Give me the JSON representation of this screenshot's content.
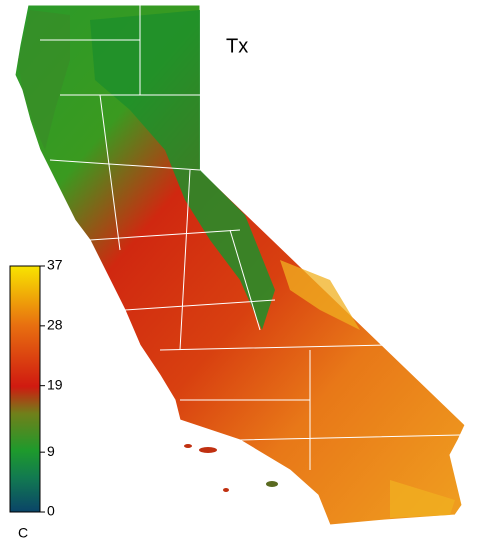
{
  "map": {
    "title": "Tx",
    "colorbar": {
      "unit": "C",
      "range": [
        0,
        37
      ],
      "ticks": [
        0,
        9,
        19,
        28,
        37
      ]
    }
  }
}
